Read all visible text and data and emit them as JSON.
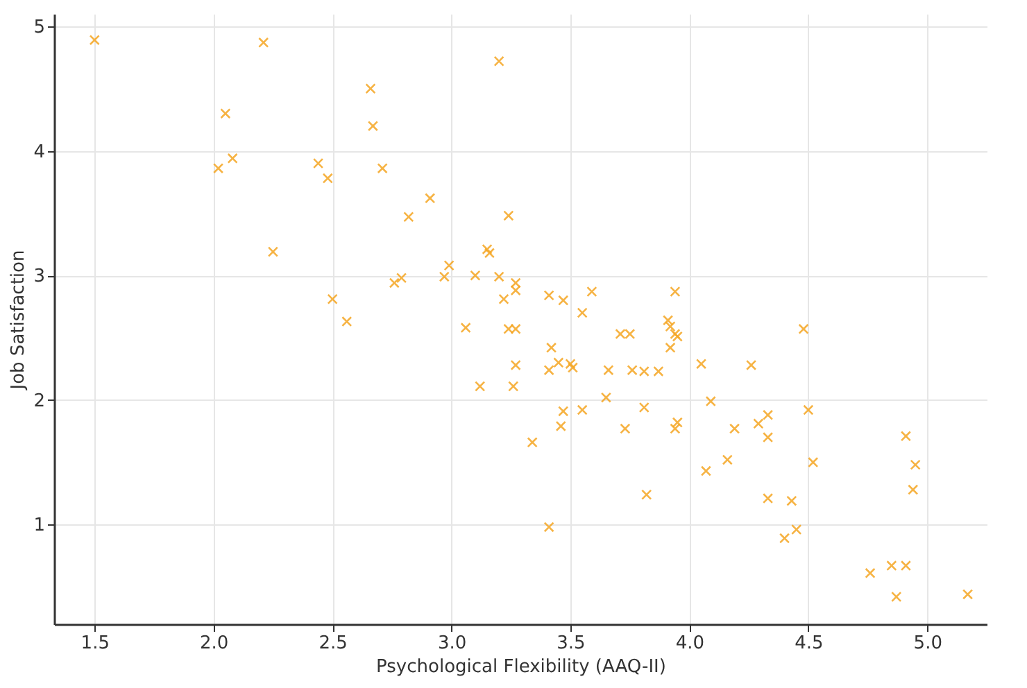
{
  "chart_data": {
    "type": "scatter",
    "xlabel": "Psychological Flexibility (AAQ-II)",
    "ylabel": "Job Satisfaction",
    "marker": "cross",
    "grid": true,
    "xlim": [
      1.33,
      5.25
    ],
    "ylim": [
      0.2,
      5.1
    ],
    "xticks": [
      1.5,
      {
        "value": 2,
        "label": "2.0"
      },
      2.5,
      {
        "value": 3,
        "label": "3.0"
      },
      3.5,
      {
        "value": 4,
        "label": "4.0"
      },
      4.5,
      {
        "value": 5,
        "label": "5.0"
      }
    ],
    "yticks": [
      1,
      2,
      3,
      4,
      5
    ],
    "series": [
      {
        "color": "#f5a623",
        "x": [
          1.5,
          2.21,
          2.05,
          2.02,
          2.08,
          2.25,
          2.44,
          2.48,
          2.66,
          2.67,
          2.71,
          2.5,
          2.56,
          2.82,
          2.91,
          2.76,
          2.79,
          3.2,
          3.24,
          2.99,
          2.97,
          3.1,
          3.15,
          3.16,
          3.06,
          3.2,
          3.27,
          3.27,
          3.22,
          3.24,
          3.27,
          3.27,
          3.26,
          3.12,
          3.34,
          3.41,
          3.47,
          3.55,
          3.59,
          3.42,
          3.45,
          3.41,
          3.5,
          3.51,
          3.47,
          3.46,
          3.55,
          3.65,
          3.66,
          3.76,
          3.81,
          3.87,
          3.71,
          3.75,
          3.73,
          3.81,
          3.82,
          3.41,
          3.94,
          3.91,
          3.92,
          3.94,
          3.95,
          3.92,
          3.94,
          3.95,
          4.05,
          4.26,
          4.48,
          4.09,
          4.5,
          4.33,
          4.29,
          4.19,
          4.33,
          4.16,
          4.07,
          4.52,
          4.91,
          4.95,
          4.94,
          4.33,
          4.43,
          4.45,
          4.4,
          4.76,
          4.85,
          4.91,
          4.87,
          5.17
        ],
        "values": [
          4.89,
          4.87,
          4.3,
          3.86,
          3.94,
          3.19,
          3.9,
          3.78,
          4.5,
          4.2,
          3.86,
          2.81,
          2.63,
          3.47,
          3.62,
          2.94,
          2.98,
          4.72,
          3.48,
          3.08,
          2.99,
          3.0,
          3.21,
          3.18,
          2.58,
          2.99,
          2.88,
          2.94,
          2.81,
          2.57,
          2.57,
          2.28,
          2.11,
          2.11,
          1.66,
          2.84,
          2.8,
          2.7,
          2.87,
          2.42,
          2.3,
          2.24,
          2.29,
          2.26,
          1.91,
          1.79,
          1.92,
          2.02,
          2.24,
          2.24,
          2.23,
          2.23,
          2.53,
          2.53,
          1.77,
          1.94,
          1.24,
          0.98,
          2.87,
          2.64,
          2.59,
          2.53,
          2.51,
          2.42,
          1.77,
          1.82,
          2.29,
          2.28,
          2.57,
          1.99,
          1.92,
          1.88,
          1.81,
          1.77,
          1.7,
          1.52,
          1.43,
          1.5,
          1.71,
          1.48,
          1.28,
          1.21,
          1.19,
          0.96,
          0.89,
          0.61,
          0.67,
          0.67,
          0.42,
          0.44
        ]
      }
    ]
  }
}
